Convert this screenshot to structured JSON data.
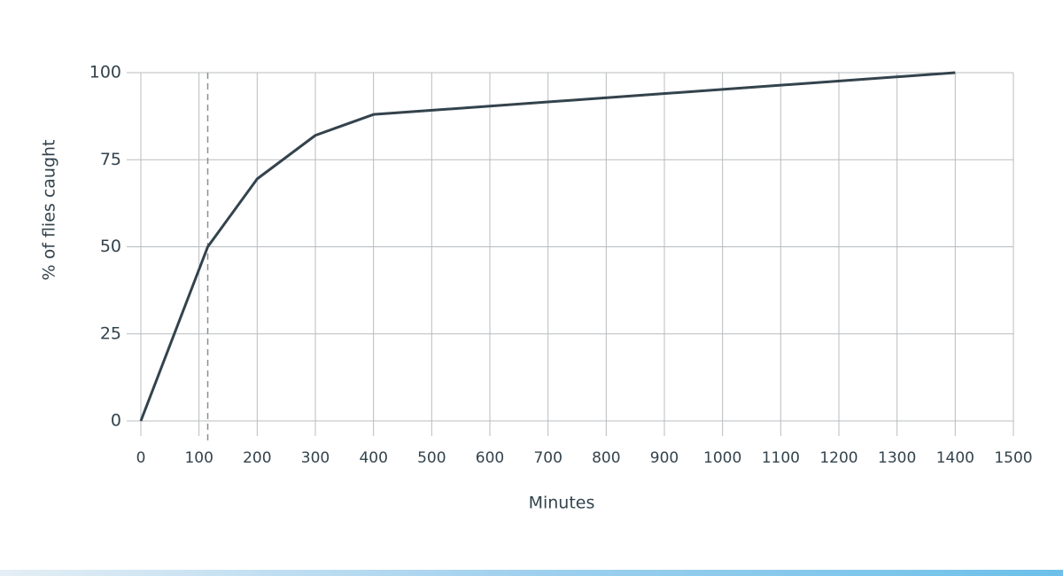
{
  "chart_data": {
    "type": "line",
    "x_label": "Minutes",
    "y_label": "% of flies caught",
    "x": [
      0,
      115,
      200,
      300,
      400,
      1400
    ],
    "series": [
      {
        "color": "#33434d",
        "values": [
          0,
          50,
          69.5,
          82,
          88,
          100
        ]
      }
    ],
    "vlines": [
      115
    ],
    "xlim": [
      0,
      1500
    ],
    "xticks": [
      0,
      100,
      200,
      300,
      400,
      500,
      600,
      700,
      800,
      900,
      1000,
      1100,
      1200,
      1300,
      1400,
      1500
    ],
    "ylim": [
      0,
      100
    ],
    "yticks": [
      0,
      25,
      50,
      75,
      100
    ],
    "grid": true
  }
}
